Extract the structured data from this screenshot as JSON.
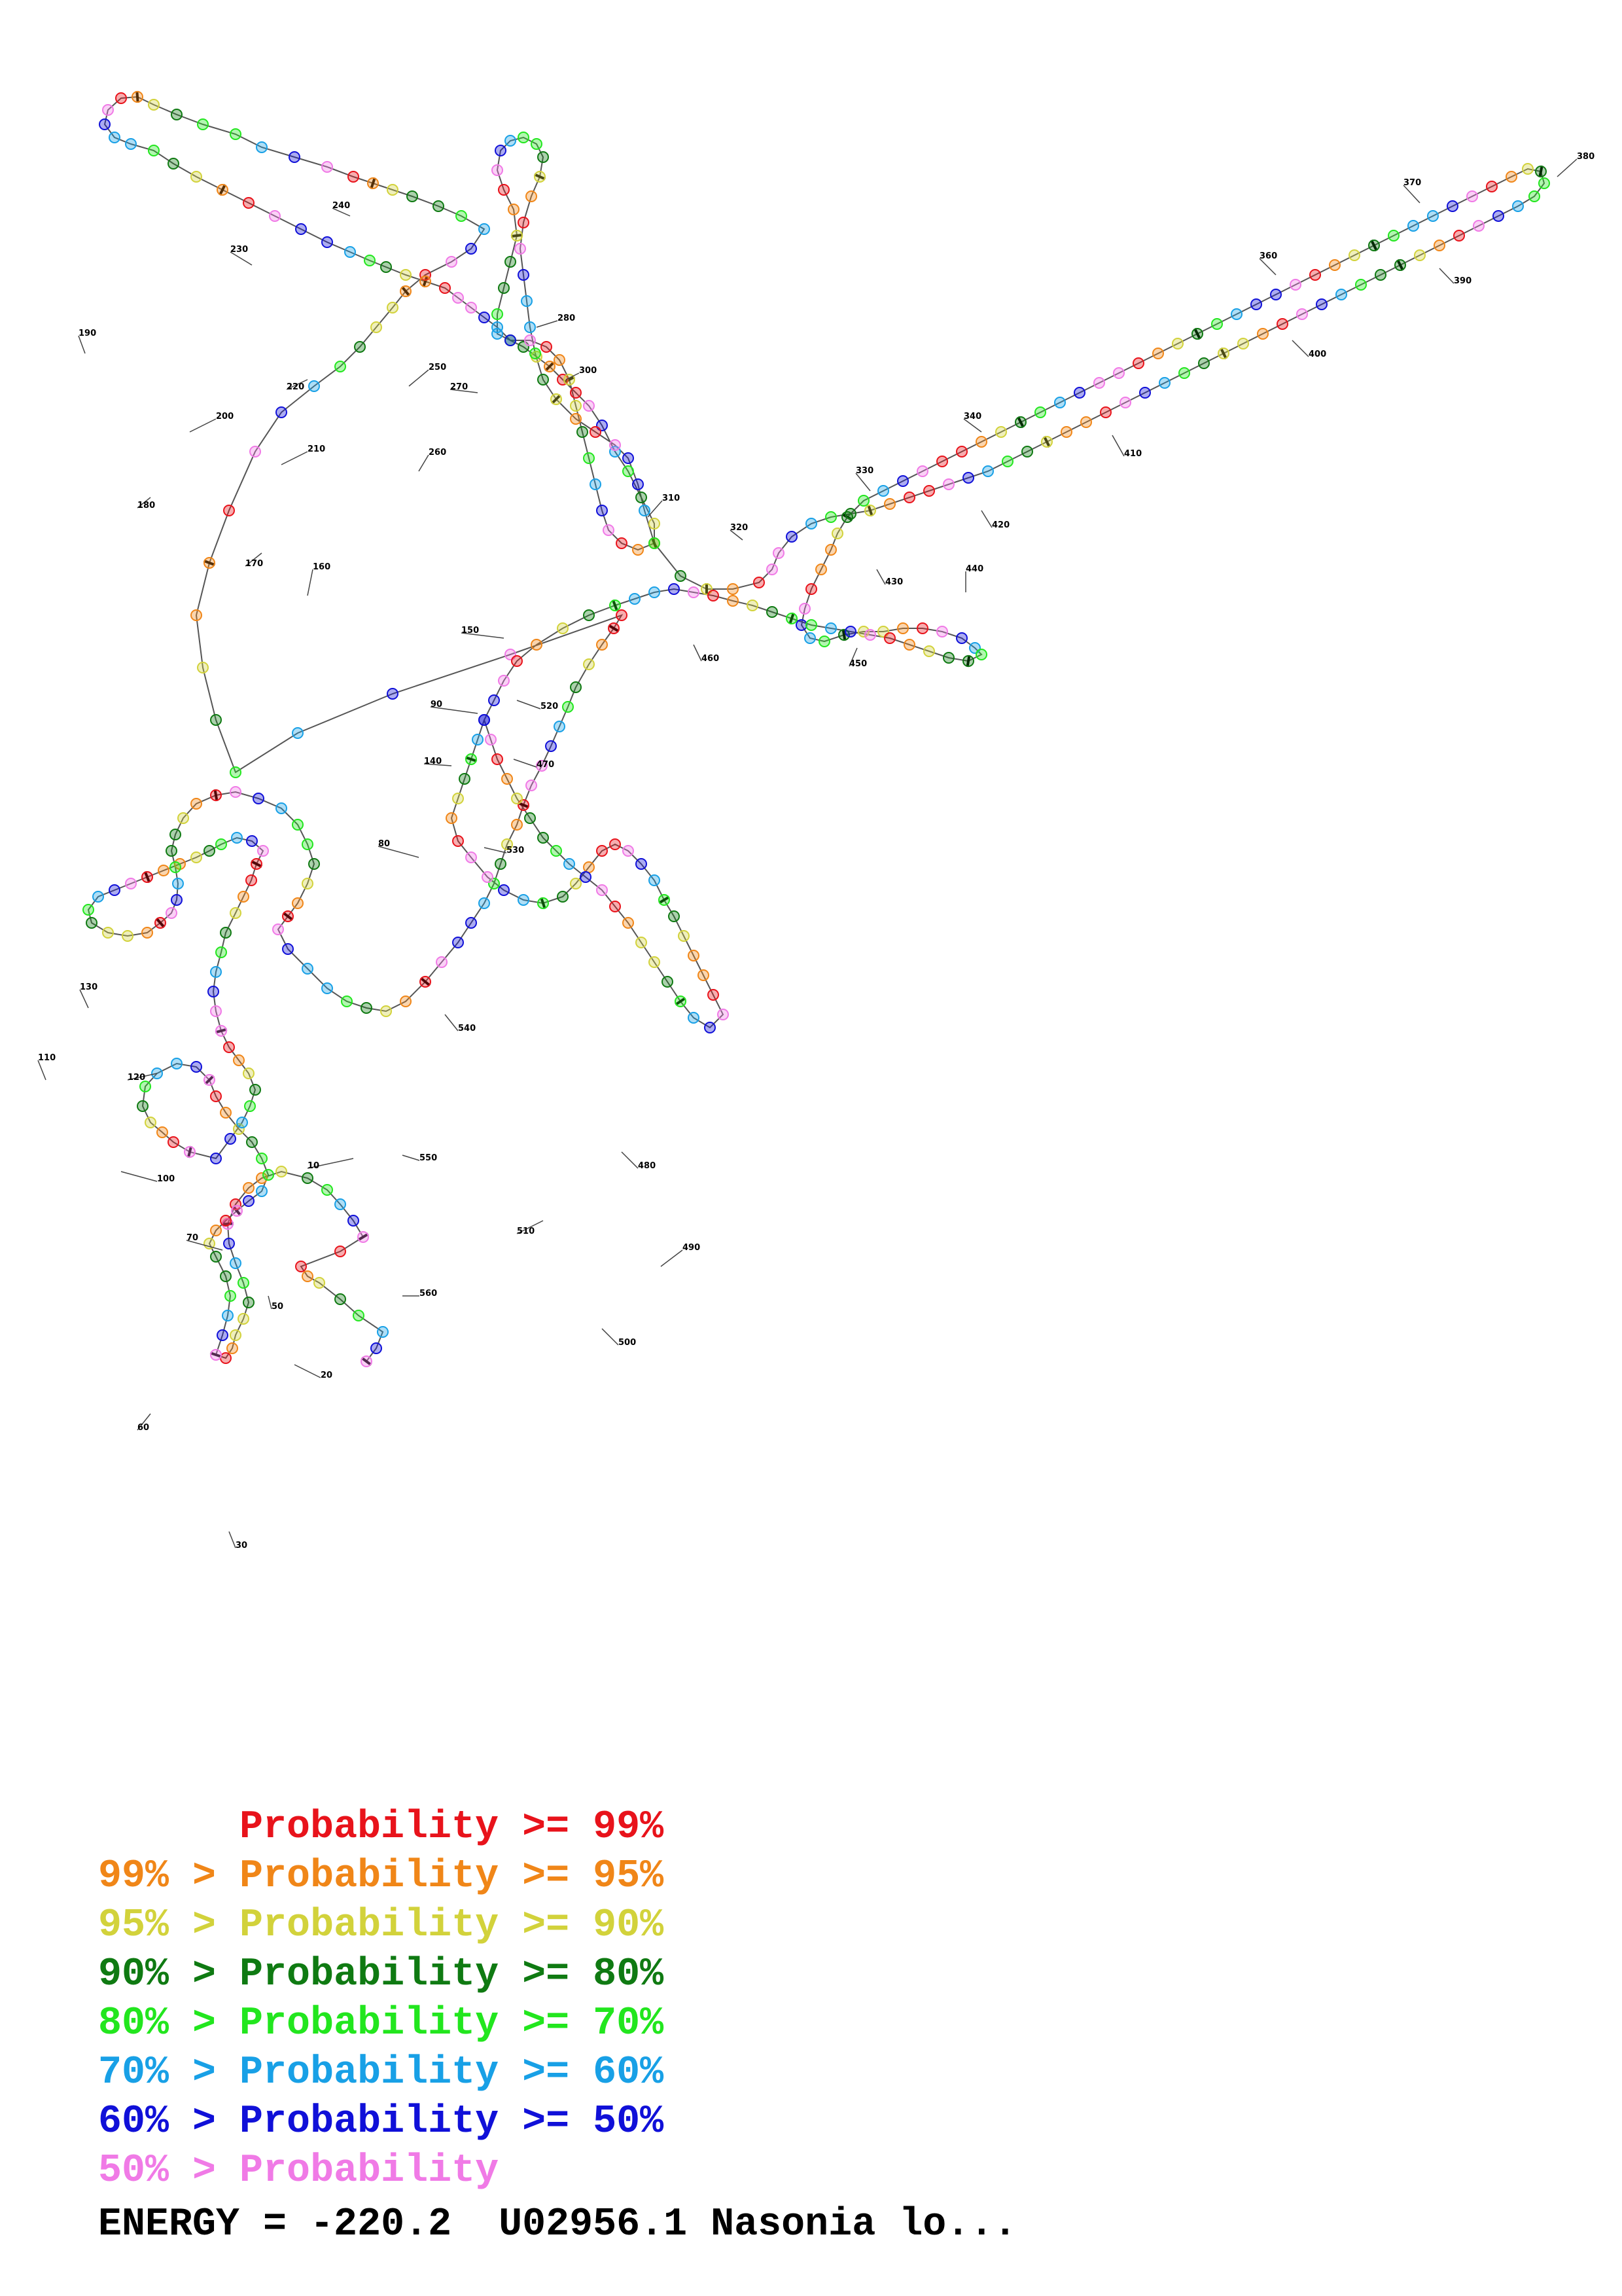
{
  "numbers": [
    "10",
    "20",
    "30",
    "50",
    "60",
    "70",
    "80",
    "90",
    "100",
    "110",
    "120",
    "130",
    "140",
    "150",
    "160",
    "170",
    "180",
    "190",
    "200",
    "210",
    "220",
    "230",
    "240",
    "250",
    "260",
    "270",
    "280",
    "300",
    "310",
    "320",
    "330",
    "340",
    "380",
    "360",
    "370",
    "390",
    "400",
    "410",
    "420",
    "430",
    "440",
    "450",
    "460",
    "470",
    "480",
    "490",
    "500",
    "510",
    "520",
    "530",
    "540",
    "550",
    "560"
  ],
  "colors": {
    "p99": "#e8131b",
    "p95": "#f08618",
    "p90": "#d2d23b",
    "p80": "#0f7a12",
    "p70": "#22e61e",
    "p60": "#18a0e6",
    "p50": "#1010d8",
    "plt50": "#f07ae6",
    "footer": "#000000"
  },
  "legend": [
    {
      "prefix": "",
      "text": "Probability >= 99%",
      "color_key": "p99"
    },
    {
      "prefix": "99% > ",
      "text": "Probability >= 95%",
      "color_key": "p95"
    },
    {
      "prefix": "95% > ",
      "text": "Probability >= 90%",
      "color_key": "p90"
    },
    {
      "prefix": "90% > ",
      "text": "Probability >= 80%",
      "color_key": "p80"
    },
    {
      "prefix": "80% > ",
      "text": "Probability >= 70%",
      "color_key": "p70"
    },
    {
      "prefix": "70% > ",
      "text": "Probability >= 60%",
      "color_key": "p60"
    },
    {
      "prefix": "60% > ",
      "text": "Probability >= 50%",
      "color_key": "p50"
    },
    {
      "prefix": "50% > ",
      "text": "Probability",
      "color_key": "plt50"
    }
  ],
  "footer": "ENERGY = -220.2  U02956.1 Nasonia lo..."
}
